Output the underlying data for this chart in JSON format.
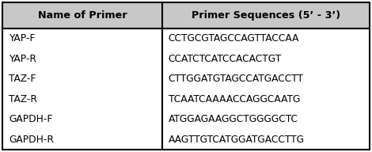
{
  "col1_header": "Name of Primer",
  "col2_header": "Primer Sequences (5’ - 3’)",
  "rows": [
    [
      "YAP-F",
      "CCTGCGTAGCCAGTTACCAA"
    ],
    [
      "YAP-R",
      "CCATCTCATCCACACTGT"
    ],
    [
      "TAZ-F",
      "CTTGGATGTAGCCATGACCTT"
    ],
    [
      "TAZ-R",
      "TCAATCAAAACCAGGCAATG"
    ],
    [
      "GAPDH-F",
      "ATGGAGAAGGCTGGGGCTC"
    ],
    [
      "GAPDH-R",
      "AAGTTGTCATGGATGACCTTG"
    ]
  ],
  "col_split": 0.435,
  "header_bg": "#c8c8c8",
  "border_color": "#000000",
  "header_fontsize": 9.2,
  "row_fontsize": 8.8,
  "fig_width": 4.7,
  "fig_height": 1.92
}
